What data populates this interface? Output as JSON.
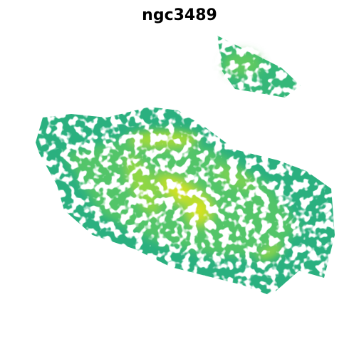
{
  "title": "ngc3489"
}
